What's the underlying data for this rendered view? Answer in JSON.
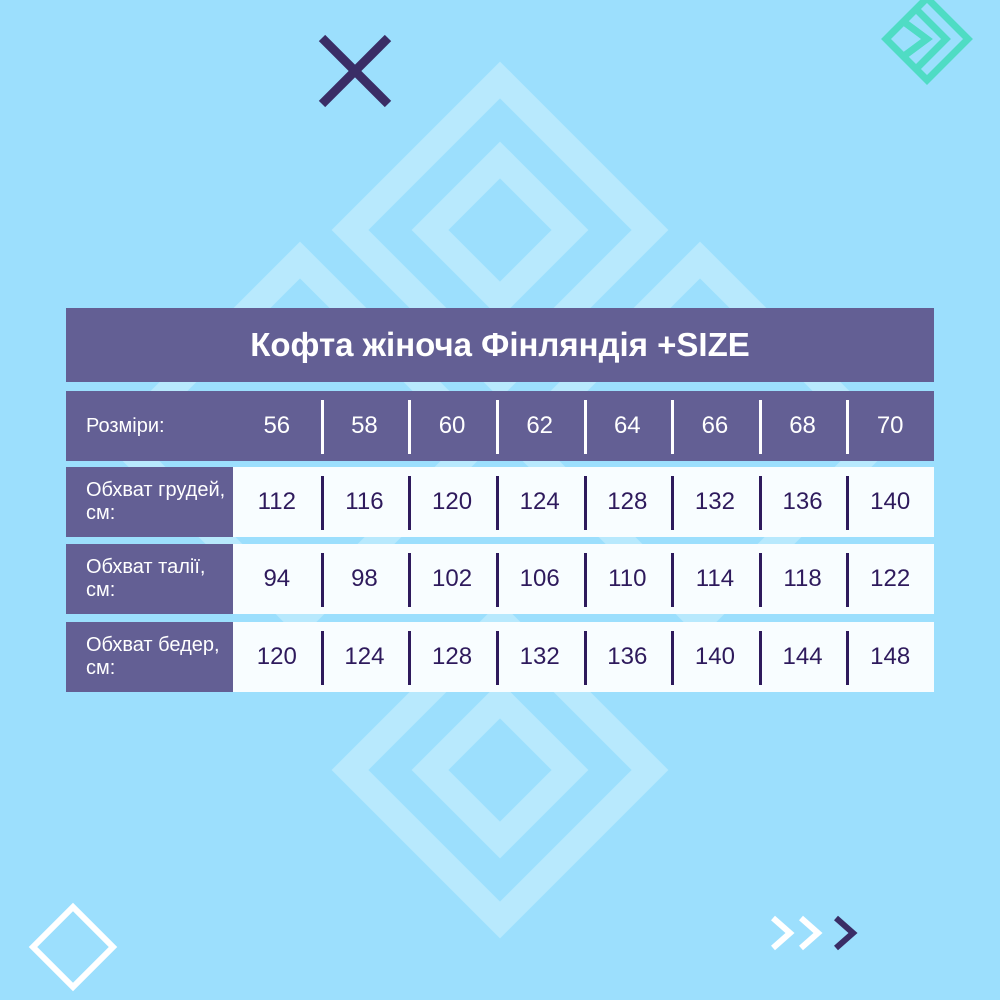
{
  "title": "Кофта жіноча Фінляндія +SIZE",
  "header": {
    "label": "Розміри:",
    "sizes": [
      "56",
      "58",
      "60",
      "62",
      "64",
      "66",
      "68",
      "70"
    ]
  },
  "rows": [
    {
      "label": "Обхват грудей, см:",
      "values": [
        "112",
        "116",
        "120",
        "124",
        "128",
        "132",
        "136",
        "140"
      ]
    },
    {
      "label": "Обхват талії, см:",
      "values": [
        "94",
        "98",
        "102",
        "106",
        "110",
        "114",
        "118",
        "122"
      ]
    },
    {
      "label": "Обхват бедер, см:",
      "values": [
        "120",
        "124",
        "128",
        "132",
        "136",
        "140",
        "144",
        "148"
      ]
    }
  ],
  "colors": {
    "background": "#9cdffd",
    "header": "#635f94",
    "text_dark": "#2e1a5c",
    "accent_teal": "#4fdcc4"
  },
  "decorations": [
    "x-icon",
    "double-diamond-chevron-icon",
    "diamond-outline-icon",
    "triple-chevron-icon"
  ]
}
